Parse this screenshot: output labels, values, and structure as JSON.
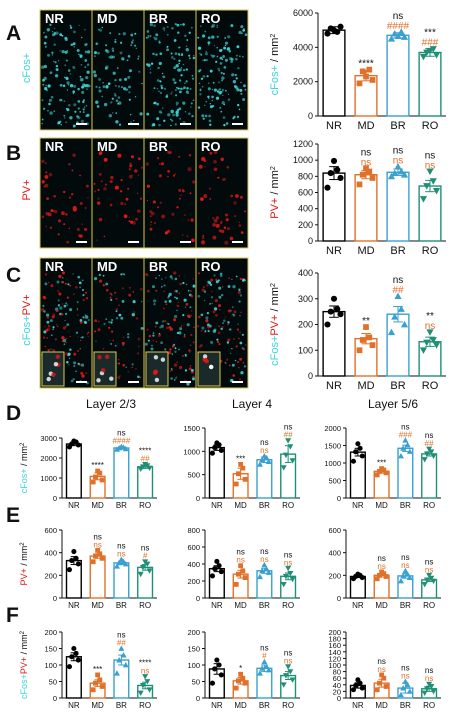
{
  "panel_letters": [
    "A",
    "B",
    "C",
    "D",
    "E",
    "F"
  ],
  "micrograph_labels": [
    "NR",
    "MD",
    "BR",
    "RO"
  ],
  "colors": {
    "NR": "#000000",
    "MD": "#e0712a",
    "BR": "#3aa0cf",
    "RO": "#1f8f76",
    "star": "#111111",
    "hash": "#e0712a",
    "cfos": "#3fd6d6",
    "pv": "#e01818"
  },
  "ylabel_parts": {
    "cfos": "cFos+",
    "pv": "PV+",
    "plus": "+",
    "unit": " / mm",
    "sup": "2"
  },
  "layer_titles": [
    "Layer 2/3",
    "Layer 4",
    "Layer 5/6"
  ],
  "chart_data": [
    {
      "id": "A",
      "type": "bar",
      "ylabel": "cFos+ / mm2",
      "categories": [
        "NR",
        "MD",
        "BR",
        "RO"
      ],
      "values": [
        5000,
        2350,
        4700,
        3700
      ],
      "errors": [
        200,
        300,
        150,
        220
      ],
      "ylim": [
        0,
        6000
      ],
      "yticks": [
        0,
        2000,
        4000,
        6000
      ],
      "points": [
        [
          4800,
          5200,
          5100,
          4900,
          5000
        ],
        [
          1900,
          2100,
          2600,
          2700,
          2300
        ],
        [
          4500,
          4600,
          4800,
          4900,
          4650
        ],
        [
          3450,
          3550,
          3700,
          3900,
          3800
        ]
      ],
      "stars": [
        "",
        "****",
        "ns",
        "***"
      ],
      "hashes": [
        "",
        "",
        "####",
        "###"
      ]
    },
    {
      "id": "B",
      "type": "bar",
      "ylabel": "PV+ / mm2",
      "categories": [
        "NR",
        "MD",
        "BR",
        "RO"
      ],
      "values": [
        840,
        820,
        850,
        680
      ],
      "errors": [
        80,
        50,
        40,
        70
      ],
      "ylim": [
        0,
        1200
      ],
      "yticks": [
        0,
        200,
        400,
        600,
        800,
        1000,
        1200
      ],
      "points": [
        [
          660,
          780,
          840,
          880,
          990
        ],
        [
          700,
          780,
          820,
          860,
          900
        ],
        [
          800,
          820,
          840,
          860,
          920
        ],
        [
          520,
          620,
          680,
          740,
          860
        ]
      ],
      "stars": [
        "",
        "ns",
        "ns",
        "ns"
      ],
      "hashes": [
        "",
        "ns",
        "ns",
        "ns"
      ]
    },
    {
      "id": "C",
      "type": "bar",
      "ylabel": "cFos+PV+ / mm2",
      "categories": [
        "NR",
        "MD",
        "BR",
        "RO"
      ],
      "values": [
        250,
        145,
        240,
        133
      ],
      "errors": [
        22,
        20,
        30,
        18
      ],
      "ylim": [
        0,
        400
      ],
      "yticks": [
        0,
        100,
        200,
        300,
        400
      ],
      "points": [
        [
          200,
          240,
          250,
          260,
          300
        ],
        [
          100,
          120,
          140,
          150,
          190
        ],
        [
          170,
          200,
          230,
          260,
          310
        ],
        [
          100,
          120,
          130,
          140,
          170
        ]
      ],
      "stars": [
        "",
        "**",
        "ns",
        "**"
      ],
      "hashes": [
        "",
        "",
        "##",
        "ns"
      ]
    },
    {
      "id": "D1",
      "type": "bar",
      "ylabel": "cFos+ / mm2",
      "categories": [
        "NR",
        "MD",
        "BR",
        "RO"
      ],
      "values": [
        2700,
        1080,
        2500,
        1560
      ],
      "errors": [
        80,
        170,
        40,
        80
      ],
      "ylim": [
        0,
        3000
      ],
      "yticks": [
        0,
        1000,
        2000,
        3000
      ],
      "points": [
        [
          2550,
          2650,
          2700,
          2800,
          2850
        ],
        [
          800,
          900,
          1050,
          1250,
          1350
        ],
        [
          2430,
          2460,
          2500,
          2530,
          2570
        ],
        [
          1450,
          1500,
          1560,
          1620,
          1680
        ]
      ],
      "stars": [
        "",
        "****",
        "ns",
        "****"
      ],
      "hashes": [
        "",
        "",
        "####",
        "##"
      ]
    },
    {
      "id": "D2",
      "type": "bar",
      "ylabel": "",
      "categories": [
        "NR",
        "MD",
        "BR",
        "RO"
      ],
      "values": [
        1080,
        520,
        820,
        940
      ],
      "errors": [
        60,
        120,
        60,
        180
      ],
      "ylim": [
        0,
        1500
      ],
      "yticks": [
        0,
        500,
        1000,
        1500
      ],
      "points": [
        [
          960,
          1020,
          1080,
          1140,
          1180
        ],
        [
          300,
          400,
          520,
          640,
          720
        ],
        [
          720,
          780,
          820,
          860,
          900
        ],
        [
          650,
          800,
          920,
          1100,
          1230
        ]
      ],
      "stars": [
        "",
        "***",
        "ns",
        "ns"
      ],
      "hashes": [
        "",
        "",
        "ns",
        "##"
      ]
    },
    {
      "id": "D3",
      "type": "bar",
      "ylabel": "",
      "categories": [
        "NR",
        "MD",
        "BR",
        "RO"
      ],
      "values": [
        1310,
        760,
        1420,
        1260
      ],
      "errors": [
        110,
        50,
        90,
        60
      ],
      "ylim": [
        0,
        2000
      ],
      "yticks": [
        0,
        500,
        1000,
        1500,
        2000
      ],
      "points": [
        [
          1050,
          1200,
          1320,
          1420,
          1550
        ],
        [
          660,
          720,
          760,
          800,
          840
        ],
        [
          1200,
          1330,
          1420,
          1520,
          1650
        ],
        [
          1100,
          1200,
          1260,
          1320,
          1400
        ]
      ],
      "stars": [
        "",
        "***",
        "ns",
        "ns"
      ],
      "hashes": [
        "",
        "",
        "###",
        "##"
      ]
    },
    {
      "id": "E1",
      "type": "bar",
      "ylabel": "PV+ / mm2",
      "categories": [
        "NR",
        "MD",
        "BR",
        "RO"
      ],
      "values": [
        330,
        370,
        310,
        270
      ],
      "errors": [
        35,
        20,
        15,
        25
      ],
      "ylim": [
        0,
        600
      ],
      "yticks": [
        0,
        200,
        400,
        600
      ],
      "points": [
        [
          250,
          300,
          330,
          350,
          410
        ],
        [
          320,
          350,
          370,
          390,
          420
        ],
        [
          280,
          300,
          310,
          320,
          340
        ],
        [
          210,
          240,
          270,
          300,
          320
        ]
      ],
      "stars": [
        "",
        "ns",
        "ns",
        "ns"
      ],
      "hashes": [
        "",
        "ns",
        "ns",
        "#"
      ]
    },
    {
      "id": "E2",
      "type": "bar",
      "ylabel": "",
      "categories": [
        "NR",
        "MD",
        "BR",
        "RO"
      ],
      "values": [
        345,
        280,
        320,
        255
      ],
      "errors": [
        35,
        45,
        30,
        40
      ],
      "ylim": [
        0,
        800
      ],
      "yticks": [
        0,
        200,
        400,
        600,
        800
      ],
      "points": [
        [
          260,
          310,
          345,
          380,
          430
        ],
        [
          160,
          240,
          280,
          320,
          380
        ],
        [
          250,
          300,
          320,
          340,
          390
        ],
        [
          160,
          220,
          255,
          290,
          350
        ]
      ],
      "stars": [
        "",
        "ns",
        "ns",
        "ns"
      ],
      "hashes": [
        "",
        "ns",
        "ns",
        "ns"
      ]
    },
    {
      "id": "E3",
      "type": "bar",
      "ylabel": "",
      "categories": [
        "NR",
        "MD",
        "BR",
        "RO"
      ],
      "values": [
        190,
        200,
        195,
        160
      ],
      "errors": [
        10,
        15,
        20,
        15
      ],
      "ylim": [
        0,
        600
      ],
      "yticks": [
        0,
        200,
        400,
        600
      ],
      "points": [
        [
          170,
          180,
          190,
          200,
          210
        ],
        [
          170,
          190,
          200,
          215,
          230
        ],
        [
          150,
          180,
          195,
          210,
          240
        ],
        [
          120,
          150,
          160,
          175,
          200
        ]
      ],
      "stars": [
        "",
        "ns",
        "ns",
        "ns"
      ],
      "hashes": [
        "",
        "ns",
        "ns",
        "ns"
      ]
    },
    {
      "id": "F1",
      "type": "bar",
      "ylabel": "cFos+PV+ / mm2",
      "categories": [
        "NR",
        "MD",
        "BR",
        "RO"
      ],
      "values": [
        125,
        45,
        115,
        38
      ],
      "errors": [
        12,
        10,
        15,
        10
      ],
      "ylim": [
        0,
        200
      ],
      "yticks": [
        0,
        50,
        100,
        150,
        200
      ],
      "points": [
        [
          95,
          115,
          125,
          135,
          150
        ],
        [
          25,
          35,
          45,
          55,
          70
        ],
        [
          75,
          100,
          115,
          130,
          150
        ],
        [
          15,
          25,
          38,
          50,
          65
        ]
      ],
      "stars": [
        "",
        "***",
        "ns",
        "****"
      ],
      "hashes": [
        "",
        "",
        "##",
        "ns"
      ]
    },
    {
      "id": "F2",
      "type": "bar",
      "ylabel": "",
      "categories": [
        "NR",
        "MD",
        "BR",
        "RO"
      ],
      "values": [
        88,
        52,
        90,
        68
      ],
      "errors": [
        16,
        10,
        10,
        12
      ],
      "ylim": [
        0,
        200
      ],
      "yticks": [
        0,
        50,
        100,
        150,
        200
      ],
      "points": [
        [
          45,
          70,
          88,
          100,
          115
        ],
        [
          30,
          45,
          52,
          60,
          72
        ],
        [
          75,
          85,
          90,
          95,
          110
        ],
        [
          40,
          55,
          68,
          80,
          95
        ]
      ],
      "stars": [
        "",
        "*",
        "ns",
        "ns"
      ],
      "hashes": [
        "",
        "",
        "#",
        "ns"
      ]
    },
    {
      "id": "F3",
      "type": "bar",
      "ylabel": "",
      "categories": [
        "NR",
        "MD",
        "BR",
        "RO"
      ],
      "values": [
        38,
        45,
        30,
        28
      ],
      "errors": [
        8,
        12,
        15,
        8
      ],
      "ylim": [
        0,
        200
      ],
      "yticks": [
        0,
        20,
        40,
        60,
        80,
        100,
        120,
        140,
        160,
        180,
        200
      ],
      "points": [
        [
          25,
          30,
          38,
          45,
          55
        ],
        [
          25,
          35,
          45,
          60,
          70
        ],
        [
          10,
          20,
          30,
          40,
          50
        ],
        [
          15,
          20,
          28,
          35,
          42
        ]
      ],
      "stars": [
        "",
        "ns",
        "ns",
        "ns"
      ],
      "hashes": [
        "",
        "ns",
        "ns",
        "ns"
      ]
    }
  ]
}
